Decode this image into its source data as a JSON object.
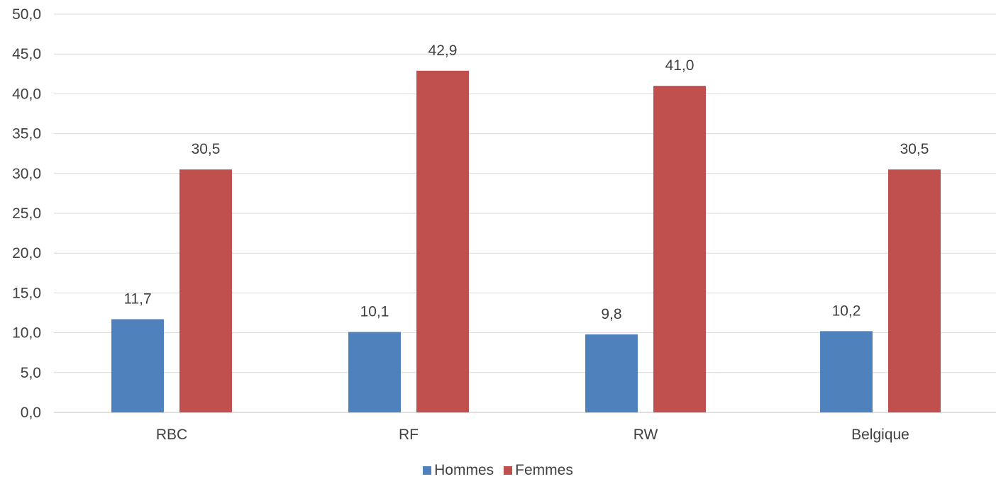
{
  "chart_data": {
    "type": "bar",
    "title": "",
    "xlabel": "",
    "ylabel": "",
    "categories": [
      "RBC",
      "RF",
      "RW",
      "Belgique"
    ],
    "series": [
      {
        "name": "Hommes",
        "color": "#4F81BD",
        "values": [
          11.7,
          10.1,
          9.8,
          10.2
        ],
        "labels": [
          "11,7",
          "10,1",
          "9,8",
          "10,2"
        ]
      },
      {
        "name": "Femmes",
        "color": "#C0504D",
        "values": [
          30.5,
          42.9,
          41.0,
          30.5
        ],
        "labels": [
          "30,5",
          "42,9",
          "41,0",
          "30,5"
        ]
      }
    ],
    "ylim": [
      0,
      50
    ],
    "yticks": [
      0,
      5,
      10,
      15,
      20,
      25,
      30,
      35,
      40,
      45,
      50
    ],
    "ytick_labels": [
      "0,0",
      "5,0",
      "10,0",
      "15,0",
      "20,0",
      "25,0",
      "30,0",
      "35,0",
      "40,0",
      "45,0",
      "50,0"
    ],
    "grid": true,
    "legend_position": "bottom-center"
  }
}
